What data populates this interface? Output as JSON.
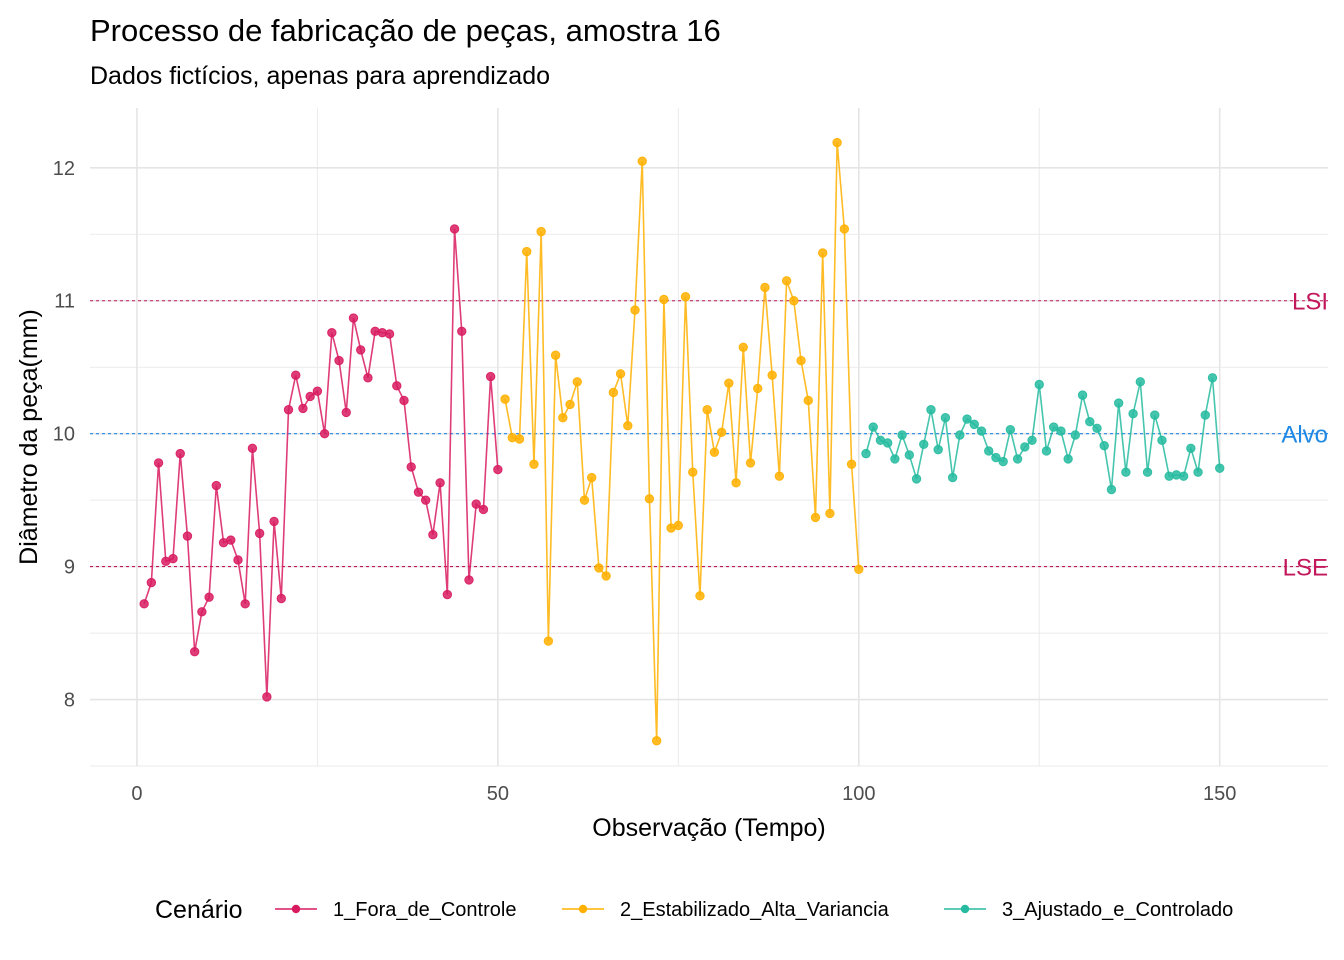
{
  "chart_data": {
    "type": "line",
    "title": "Processo de fabricação de peças, amostra 16",
    "subtitle": "Dados fictícios, apenas para aprendizado",
    "xlabel": "Observação (Tempo)",
    "ylabel": "Diâmetro da peça(mm)",
    "xlim": [
      -6.5,
      165
    ],
    "ylim": [
      7.5,
      12.45
    ],
    "x_ticks": [
      0,
      50,
      100,
      150
    ],
    "y_ticks": [
      8,
      9,
      10,
      11,
      12
    ],
    "x_tick_labels": [
      "0",
      "50",
      "100",
      "150"
    ],
    "y_tick_labels": [
      "8",
      "9",
      "10",
      "11",
      "12"
    ],
    "grid": true,
    "legend": {
      "title": "Cenário",
      "position": "bottom"
    },
    "reference_lines": [
      {
        "label": "LSI",
        "y": 11,
        "color": "#c2185b"
      },
      {
        "label": "Alvo",
        "y": 10,
        "color": "#1e88e5"
      },
      {
        "label": "LSE",
        "y": 9,
        "color": "#c2185b"
      }
    ],
    "series": [
      {
        "name": "1_Fora_de_Controle",
        "color": "#d81b60",
        "x": [
          1,
          2,
          3,
          4,
          5,
          6,
          7,
          8,
          9,
          10,
          11,
          12,
          13,
          14,
          15,
          16,
          17,
          18,
          19,
          20,
          21,
          22,
          23,
          24,
          25,
          26,
          27,
          28,
          29,
          30,
          31,
          32,
          33,
          34,
          35,
          36,
          37,
          38,
          39,
          40,
          41,
          42,
          43,
          44,
          45,
          46,
          47,
          48,
          49,
          50
        ],
        "y": [
          8.72,
          8.88,
          9.78,
          9.04,
          9.06,
          9.85,
          9.23,
          8.36,
          8.66,
          8.77,
          9.61,
          9.18,
          9.2,
          9.05,
          8.72,
          9.89,
          9.25,
          8.02,
          9.34,
          8.76,
          10.18,
          10.44,
          10.19,
          10.28,
          10.32,
          10.0,
          10.76,
          10.55,
          10.16,
          10.87,
          10.63,
          10.42,
          10.77,
          10.76,
          10.75,
          10.36,
          10.25,
          9.75,
          9.56,
          9.5,
          9.24,
          9.63,
          8.79,
          11.54,
          10.77,
          8.9,
          9.47,
          9.43,
          10.43,
          9.73
        ]
      },
      {
        "name": "2_Estabilizado_Alta_Variancia",
        "color": "#ffb000",
        "x": [
          51,
          52,
          53,
          54,
          55,
          56,
          57,
          58,
          59,
          60,
          61,
          62,
          63,
          64,
          65,
          66,
          67,
          68,
          69,
          70,
          71,
          72,
          73,
          74,
          75,
          76,
          77,
          78,
          79,
          80,
          81,
          82,
          83,
          84,
          85,
          86,
          87,
          88,
          89,
          90,
          91,
          92,
          93,
          94,
          95,
          96,
          97,
          98,
          99,
          100
        ],
        "y": [
          10.26,
          9.97,
          9.96,
          11.37,
          9.77,
          11.52,
          8.44,
          10.59,
          10.12,
          10.22,
          10.39,
          9.5,
          9.67,
          8.99,
          8.93,
          10.31,
          10.45,
          10.06,
          10.93,
          12.05,
          9.51,
          7.69,
          11.01,
          9.29,
          9.31,
          11.03,
          9.71,
          8.78,
          10.18,
          9.86,
          10.01,
          10.38,
          9.63,
          10.65,
          9.78,
          10.34,
          11.1,
          10.44,
          9.68,
          11.15,
          11.0,
          10.55,
          10.25,
          9.37,
          11.36,
          9.4,
          12.19,
          11.54,
          9.77,
          8.98
        ]
      },
      {
        "name": "3_Ajustado_e_Controlado",
        "color": "#26bba0",
        "x": [
          101,
          102,
          103,
          104,
          105,
          106,
          107,
          108,
          109,
          110,
          111,
          112,
          113,
          114,
          115,
          116,
          117,
          118,
          119,
          120,
          121,
          122,
          123,
          124,
          125,
          126,
          127,
          128,
          129,
          130,
          131,
          132,
          133,
          134,
          135,
          136,
          137,
          138,
          139,
          140,
          141,
          142,
          143,
          144,
          145,
          146,
          147,
          148,
          149,
          150
        ],
        "y": [
          9.85,
          10.05,
          9.95,
          9.93,
          9.81,
          9.99,
          9.84,
          9.66,
          9.92,
          10.18,
          9.88,
          10.12,
          9.67,
          9.99,
          10.11,
          10.07,
          10.02,
          9.87,
          9.82,
          9.79,
          10.03,
          9.81,
          9.9,
          9.95,
          10.37,
          9.87,
          10.05,
          10.02,
          9.81,
          9.99,
          10.29,
          10.09,
          10.04,
          9.91,
          9.58,
          10.23,
          9.71,
          10.15,
          10.39,
          9.71,
          10.14,
          9.95,
          9.68,
          9.69,
          9.68,
          9.89,
          9.71,
          10.14,
          10.42,
          9.74
        ]
      }
    ]
  }
}
